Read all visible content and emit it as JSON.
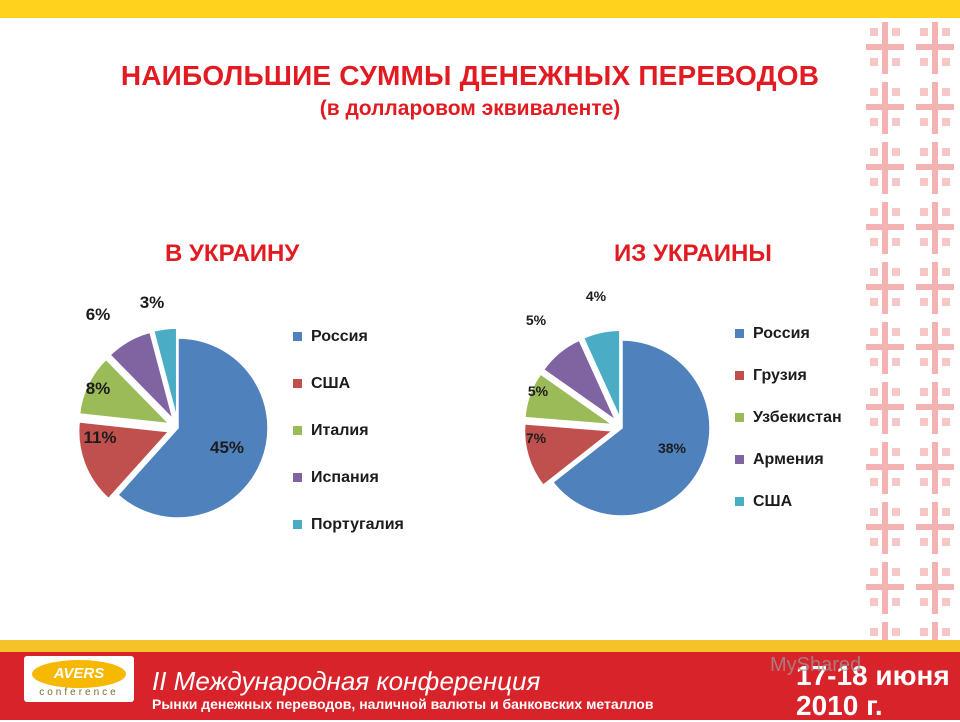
{
  "slide": {
    "title": "НАИБОЛЬШИЕ СУММЫ ДЕНЕЖНЫХ ПЕРЕВОДОВ",
    "subtitle": "(в долларовом эквиваленте)"
  },
  "chart_data": [
    {
      "type": "pie",
      "title": "В УКРАИНУ",
      "categories": [
        "Россия",
        "США",
        "Италия",
        "Испания",
        "Португалия"
      ],
      "values": [
        45,
        11,
        8,
        6,
        3
      ],
      "labels": [
        "45%",
        "11%",
        "8%",
        "6%",
        "3%"
      ],
      "colors": [
        "#4f81bd",
        "#c0504d",
        "#9bbb59",
        "#8064a2",
        "#4bacc6"
      ],
      "legend": "right"
    },
    {
      "type": "pie",
      "title": "ИЗ УКРАИНЫ",
      "categories": [
        "Россия",
        "Грузия",
        "Узбекистан",
        "Армения",
        "США"
      ],
      "values": [
        38,
        7,
        5,
        5,
        4
      ],
      "labels": [
        "38%",
        "7%",
        "5%",
        "5%",
        "4%"
      ],
      "colors": [
        "#4f81bd",
        "#c0504d",
        "#9bbb59",
        "#8064a2",
        "#4bacc6"
      ],
      "legend": "right"
    }
  ],
  "footer": {
    "logo_text": "AVERS",
    "logo_sub": "conference",
    "conference_title": "II Международная конференция",
    "conference_subtitle": "Рынки денежных переводов, наличной валюты и банковских металлов",
    "date_line1": "17-18 июня",
    "date_line2": "2010 г."
  },
  "watermark": "MyShared",
  "colors": {
    "accent_red": "#e21a22",
    "top_bar": "#ffd21e",
    "footer_red": "#d8232a"
  }
}
